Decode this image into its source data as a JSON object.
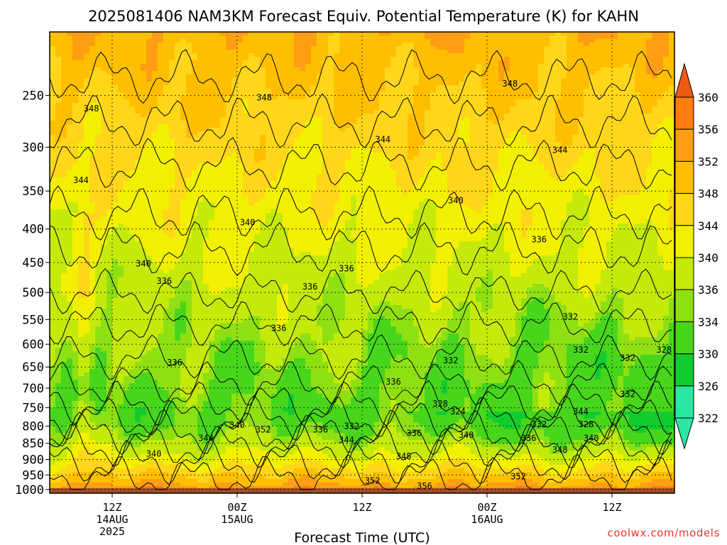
{
  "chart_data": {
    "type": "heatmap",
    "title": "2025081406 NAM3KM Forecast Equiv. Potential Temperature (K) for KAHN",
    "xlabel": "Forecast Time (UTC)",
    "ylabel": "",
    "credit": "coolwx.com/models",
    "y_axis": {
      "scale": "pressure",
      "ticks": [
        "250",
        "300",
        "350",
        "400",
        "450",
        "500",
        "550",
        "600",
        "650",
        "700",
        "750",
        "800",
        "850",
        "900",
        "950",
        "1000"
      ],
      "ylim": [
        200,
        1013
      ]
    },
    "x_axis": {
      "xlim_hours": [
        0,
        60
      ],
      "ticks": [
        {
          "hour": 6,
          "label": "12Z",
          "date": "14AUG",
          "year": "2025"
        },
        {
          "hour": 18,
          "label": "00Z",
          "date": "15AUG",
          "year": ""
        },
        {
          "hour": 30,
          "label": "12Z",
          "date": "",
          "year": ""
        },
        {
          "hour": 42,
          "label": "00Z",
          "date": "16AUG",
          "year": ""
        },
        {
          "hour": 54,
          "label": "12Z",
          "date": "",
          "year": ""
        }
      ]
    },
    "colorbar": {
      "levels": [
        "322",
        "326",
        "330",
        "334",
        "336",
        "340",
        "344",
        "348",
        "352",
        "356",
        "360"
      ],
      "colors": {
        "322": "#2ee6a3",
        "326": "#12cc2e",
        "330": "#47d61c",
        "334": "#8fe013",
        "336": "#c4ea0b",
        "340": "#f2f000",
        "344": "#ffd619",
        "348": "#ffbf00",
        "352": "#ff9e12",
        "356": "#ff7d12",
        "360": "#eb5c12"
      }
    },
    "below_ground_color": "#a64d24",
    "grid": true,
    "contour_labels": [
      {
        "value": "348",
        "hour": 4.0,
        "pressure": 262
      },
      {
        "value": "348",
        "hour": 20.6,
        "pressure": 252
      },
      {
        "value": "348",
        "hour": 44.2,
        "pressure": 240
      },
      {
        "value": "344",
        "hour": 3.0,
        "pressure": 337
      },
      {
        "value": "344",
        "hour": 32.0,
        "pressure": 292
      },
      {
        "value": "344",
        "hour": 49.0,
        "pressure": 303
      },
      {
        "value": "340",
        "hour": 9.0,
        "pressure": 452
      },
      {
        "value": "340",
        "hour": 19.0,
        "pressure": 391
      },
      {
        "value": "340",
        "hour": 39.0,
        "pressure": 362
      },
      {
        "value": "336",
        "hour": 11.0,
        "pressure": 480
      },
      {
        "value": "336",
        "hour": 25.0,
        "pressure": 490
      },
      {
        "value": "336",
        "hour": 28.5,
        "pressure": 460
      },
      {
        "value": "336",
        "hour": 47.0,
        "pressure": 415
      },
      {
        "value": "336",
        "hour": 22.0,
        "pressure": 567
      },
      {
        "value": "336",
        "hour": 12.0,
        "pressure": 640
      },
      {
        "value": "336",
        "hour": 33.0,
        "pressure": 685
      },
      {
        "value": "332",
        "hour": 50.0,
        "pressure": 545
      },
      {
        "value": "332",
        "hour": 51.0,
        "pressure": 612
      },
      {
        "value": "332",
        "hour": 55.5,
        "pressure": 630
      },
      {
        "value": "332",
        "hour": 55.5,
        "pressure": 715
      },
      {
        "value": "332",
        "hour": 38.5,
        "pressure": 635
      },
      {
        "value": "328",
        "hour": 59.0,
        "pressure": 612
      },
      {
        "value": "328",
        "hour": 37.5,
        "pressure": 740
      },
      {
        "value": "328",
        "hour": 51.5,
        "pressure": 795
      },
      {
        "value": "324",
        "hour": 39.2,
        "pressure": 760
      },
      {
        "value": "344",
        "hour": 51.0,
        "pressure": 760
      },
      {
        "value": "340",
        "hour": 18.0,
        "pressure": 797
      },
      {
        "value": "352",
        "hour": 20.5,
        "pressure": 810
      },
      {
        "value": "336",
        "hour": 26.0,
        "pressure": 810
      },
      {
        "value": "332",
        "hour": 29.0,
        "pressure": 800
      },
      {
        "value": "336",
        "hour": 35.0,
        "pressure": 820
      },
      {
        "value": "340",
        "hour": 40.0,
        "pressure": 825
      },
      {
        "value": "332",
        "hour": 47.0,
        "pressure": 795
      },
      {
        "value": "336",
        "hour": 46.0,
        "pressure": 835
      },
      {
        "value": "340",
        "hour": 52.0,
        "pressure": 835
      },
      {
        "value": "344",
        "hour": 15.0,
        "pressure": 835
      },
      {
        "value": "344",
        "hour": 28.5,
        "pressure": 840
      },
      {
        "value": "340",
        "hour": 10.0,
        "pressure": 882
      },
      {
        "value": "348",
        "hour": 34.0,
        "pressure": 890
      },
      {
        "value": "348",
        "hour": 49.0,
        "pressure": 870
      },
      {
        "value": "352",
        "hour": 31.0,
        "pressure": 970
      },
      {
        "value": "352",
        "hour": 45.0,
        "pressure": 955
      },
      {
        "value": "356",
        "hour": 36.0,
        "pressure": 988
      }
    ]
  }
}
